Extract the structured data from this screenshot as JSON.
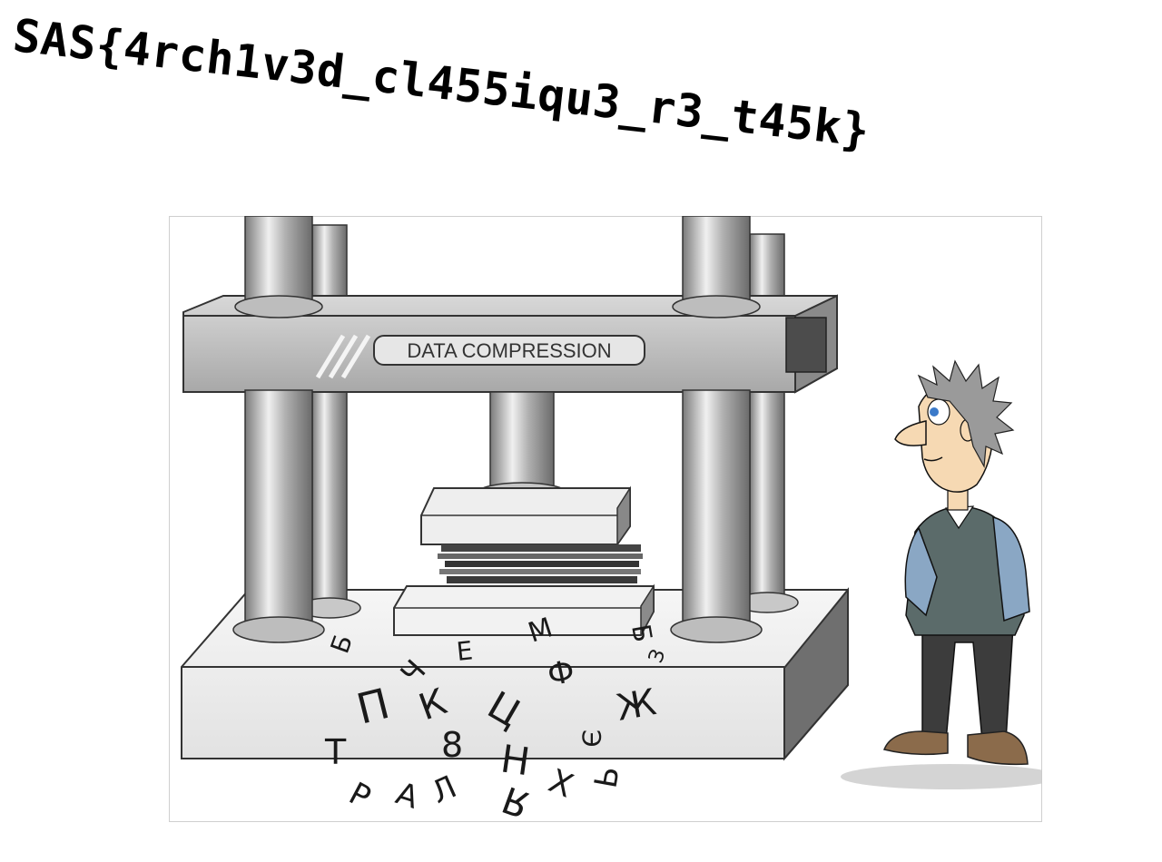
{
  "flag": {
    "text": "SAS{4rch1v3d_cl455iqu3_r3_t45k}"
  },
  "illustration": {
    "press_label": "DATA COMPRESSION",
    "scattered_letters": [
      "П",
      "К",
      "Ц",
      "Ж",
      "Т",
      "8",
      "Н",
      "Х",
      "Я",
      "Ь",
      "Р",
      "А",
      "Л",
      "Б",
      "Ф",
      "М",
      "Ч",
      "Е",
      "Э",
      "З",
      "Б"
    ],
    "icons": [
      "press-machine",
      "cartoon-man",
      "compressed-papers"
    ]
  },
  "colors": {
    "metal_dark": "#6e6e6e",
    "metal_mid": "#b3b3b3",
    "metal_light": "#e8e8e8",
    "vest": "#5b6b6a",
    "shirt": "#8aa7c4",
    "trousers": "#3c3c3c",
    "shoes": "#8b6b4b"
  }
}
